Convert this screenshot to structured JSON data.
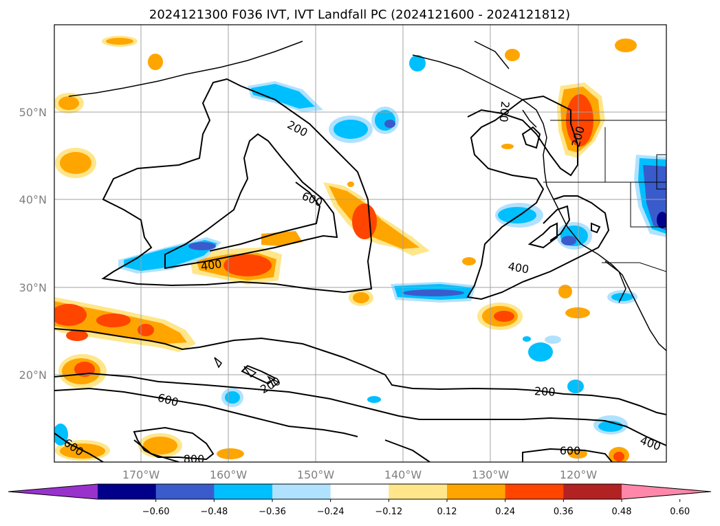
{
  "title": "2024121300 F036 IVT, IVT Landfall PC (2024121600 - 2024121812)",
  "lat_labels": [
    "50°N",
    "40°N",
    "30°N",
    "20°N"
  ],
  "lon_labels": [
    "170°W",
    "160°W",
    "150°W",
    "140°W",
    "130°W",
    "120°W"
  ],
  "contour_labels": [
    "200",
    "600",
    "400",
    "200",
    "400",
    "200",
    "600",
    "200",
    "400",
    "600",
    "800",
    "600"
  ],
  "colorbar": {
    "tick_labels": [
      "−0.60",
      "−0.48",
      "−0.36",
      "−0.24",
      "−0.12",
      "0.12",
      "0.24",
      "0.36",
      "0.48",
      "0.60"
    ],
    "colors": [
      "#9932cc",
      "#00008b",
      "#3a5bcc",
      "#00bfff",
      "#b0e2ff",
      "#ffffff",
      "#ffe68a",
      "#ffa500",
      "#ff4500",
      "#b22222",
      "#ff88aa"
    ]
  }
}
